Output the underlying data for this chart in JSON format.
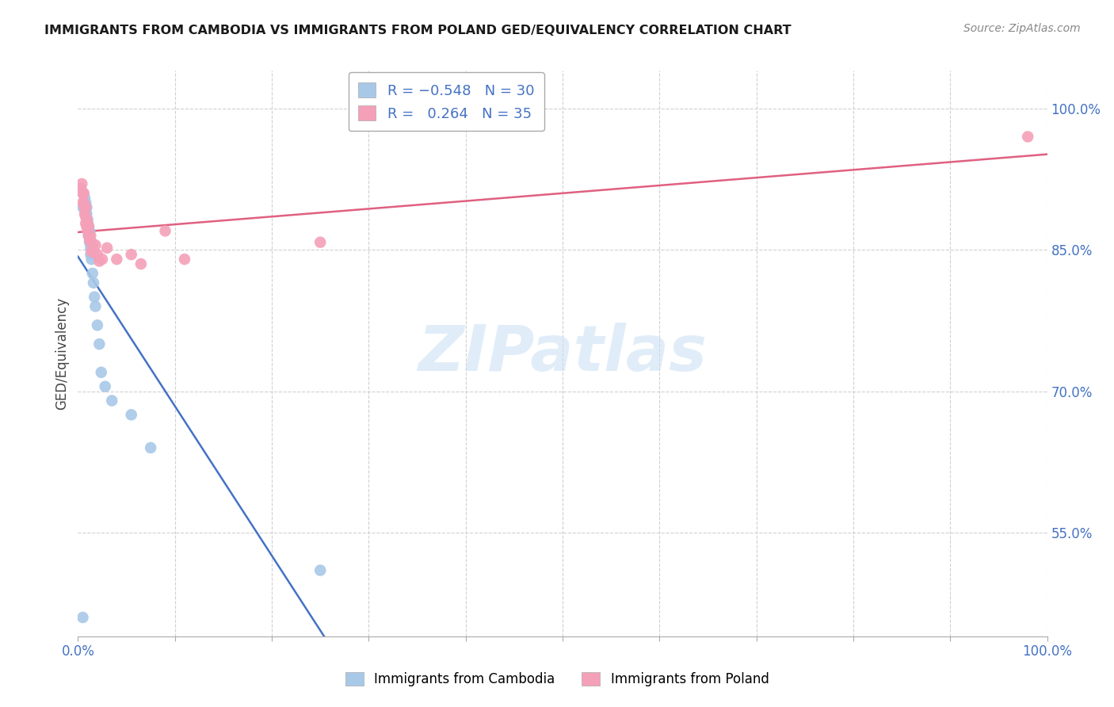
{
  "title": "IMMIGRANTS FROM CAMBODIA VS IMMIGRANTS FROM POLAND GED/EQUIVALENCY CORRELATION CHART",
  "source": "Source: ZipAtlas.com",
  "ylabel": "GED/Equivalency",
  "yticks": [
    "100.0%",
    "85.0%",
    "70.0%",
    "55.0%"
  ],
  "ytick_vals": [
    1.0,
    0.85,
    0.7,
    0.55
  ],
  "xlim": [
    0.0,
    1.0
  ],
  "ylim": [
    0.44,
    1.04
  ],
  "cambodia_R": -0.548,
  "cambodia_N": 30,
  "poland_R": 0.264,
  "poland_N": 35,
  "cambodia_color": "#a8c8e8",
  "poland_color": "#f4a0b8",
  "cambodia_line_color": "#4472c4",
  "poland_line_color": "#e06080",
  "legend_box_color": "#cccccc",
  "watermark_color": "#ddeeff",
  "background_color": "#ffffff",
  "cambodia_x": [
    0.002,
    0.005,
    0.005,
    0.007,
    0.008,
    0.008,
    0.009,
    0.009,
    0.01,
    0.01,
    0.011,
    0.011,
    0.012,
    0.012,
    0.013,
    0.013,
    0.014,
    0.015,
    0.016,
    0.017,
    0.018,
    0.02,
    0.022,
    0.024,
    0.028,
    0.035,
    0.055,
    0.075,
    0.25,
    0.005
  ],
  "cambodia_y": [
    0.915,
    0.91,
    0.895,
    0.905,
    0.9,
    0.892,
    0.895,
    0.888,
    0.882,
    0.875,
    0.875,
    0.865,
    0.87,
    0.858,
    0.852,
    0.845,
    0.84,
    0.825,
    0.815,
    0.8,
    0.79,
    0.77,
    0.75,
    0.72,
    0.705,
    0.69,
    0.675,
    0.64,
    0.51,
    0.46
  ],
  "poland_x": [
    0.003,
    0.004,
    0.005,
    0.005,
    0.006,
    0.006,
    0.007,
    0.007,
    0.008,
    0.008,
    0.008,
    0.009,
    0.009,
    0.01,
    0.01,
    0.011,
    0.011,
    0.012,
    0.013,
    0.014,
    0.014,
    0.015,
    0.016,
    0.018,
    0.02,
    0.022,
    0.025,
    0.03,
    0.04,
    0.055,
    0.065,
    0.09,
    0.11,
    0.25,
    0.98
  ],
  "poland_y": [
    0.915,
    0.92,
    0.91,
    0.9,
    0.91,
    0.9,
    0.895,
    0.888,
    0.895,
    0.885,
    0.878,
    0.882,
    0.875,
    0.878,
    0.87,
    0.875,
    0.865,
    0.86,
    0.865,
    0.858,
    0.848,
    0.855,
    0.848,
    0.855,
    0.845,
    0.838,
    0.84,
    0.852,
    0.84,
    0.845,
    0.835,
    0.87,
    0.84,
    0.858,
    0.97
  ]
}
